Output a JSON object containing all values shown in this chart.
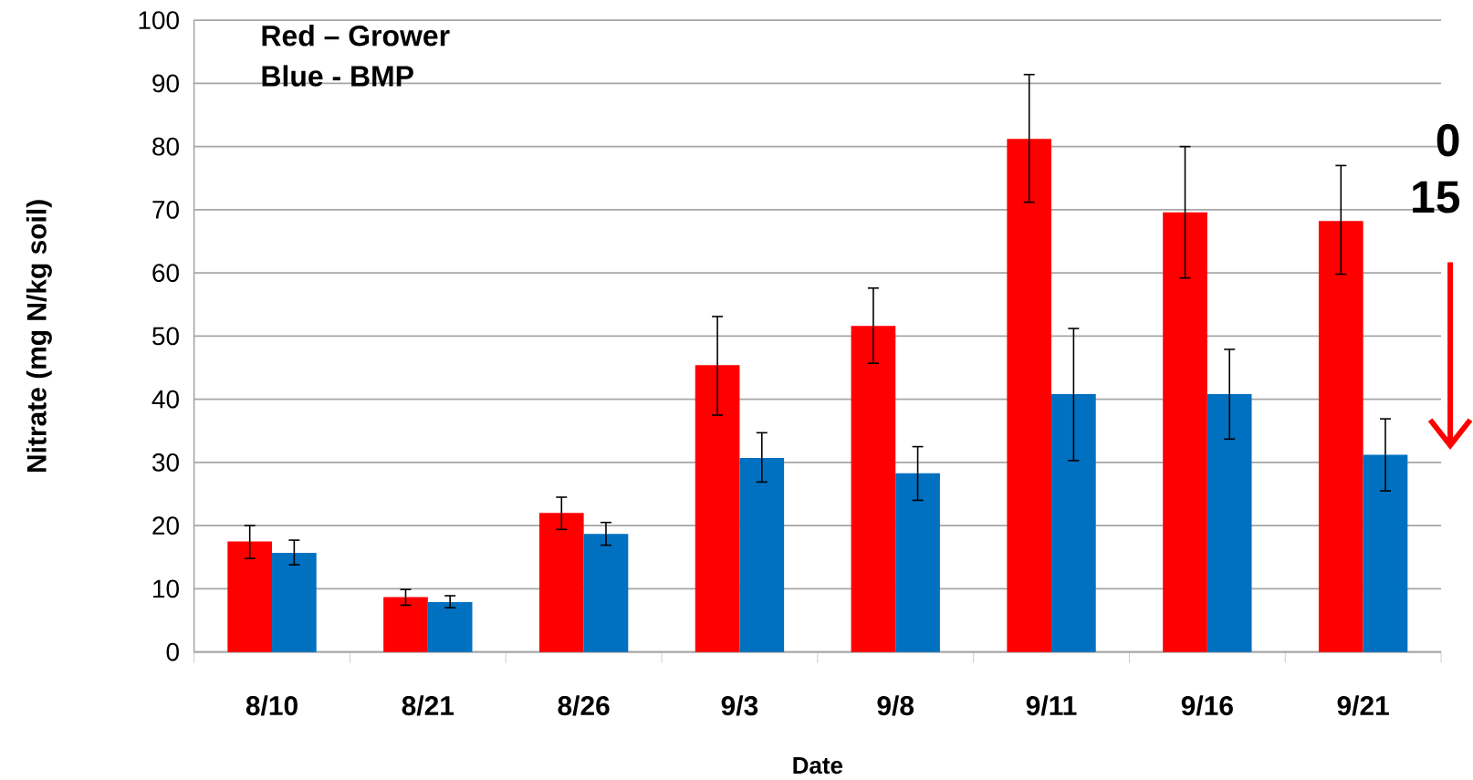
{
  "chart_data": {
    "type": "bar",
    "xlabel": "Date",
    "ylabel": "Nitrate (mg N/kg soil)",
    "categories": [
      "8/10",
      "8/21",
      "8/26",
      "9/3",
      "9/8",
      "9/11",
      "9/16",
      "9/21"
    ],
    "series": [
      {
        "color": "#ff0000",
        "values": [
          17.5,
          8.7,
          22.0,
          45.4,
          51.6,
          81.2,
          69.6,
          68.2
        ],
        "errors": [
          [
            14.8,
            20.0
          ],
          [
            7.4,
            9.9
          ],
          [
            19.4,
            24.5
          ],
          [
            37.5,
            53.1
          ],
          [
            45.7,
            57.6
          ],
          [
            71.2,
            91.4
          ],
          [
            59.2,
            80.0
          ],
          [
            59.8,
            77.0
          ]
        ]
      },
      {
        "color": "#0070c0",
        "values": [
          15.7,
          7.9,
          18.7,
          30.7,
          28.3,
          40.8,
          40.8,
          31.2
        ],
        "errors": [
          [
            13.8,
            17.7
          ],
          [
            7.0,
            8.9
          ],
          [
            16.9,
            20.5
          ],
          [
            26.9,
            34.7
          ],
          [
            24.0,
            32.5
          ],
          [
            30.3,
            51.2
          ],
          [
            33.7,
            47.9
          ],
          [
            25.5,
            36.9
          ]
        ]
      }
    ],
    "ylim": [
      0,
      100
    ],
    "yticks": [
      0,
      10,
      20,
      30,
      40,
      50,
      60,
      70,
      80,
      90,
      100
    ],
    "grid": "y",
    "annotations": [
      "Red – Grower",
      "Blue - BMP",
      "0",
      "15"
    ]
  }
}
